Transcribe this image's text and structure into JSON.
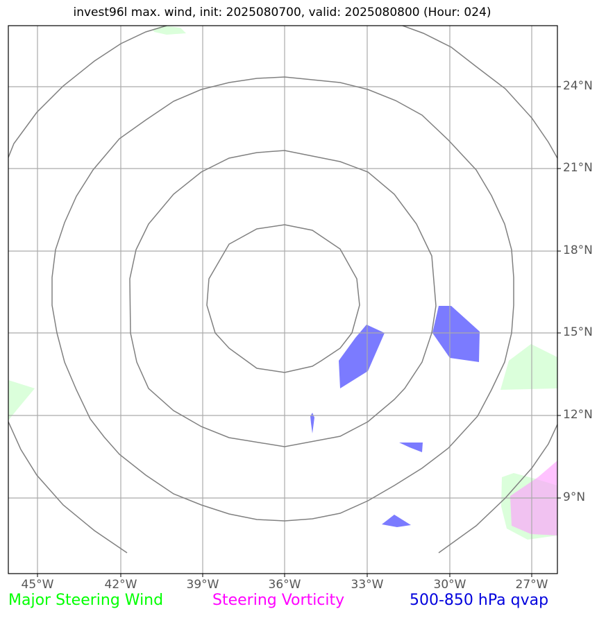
{
  "title": "invest96l max. wind, init: 2025080700, valid: 2025080800 (Hour: 024)",
  "map": {
    "lon_labels": [
      "45°W",
      "42°W",
      "39°W",
      "36°W",
      "33°W",
      "30°W",
      "27°W"
    ],
    "lat_labels": [
      "24°N",
      "21°N",
      "18°N",
      "15°N",
      "12°N",
      "9°N"
    ],
    "extent": {
      "lon_min": -46,
      "lon_max": -26,
      "lat_min": 6,
      "lat_max": 26
    },
    "grid": true,
    "colors": {
      "range_rings": "#808080",
      "gridlines": "#aaaaaa",
      "steering_wind": "#ccffcc",
      "steering_vorticity": "#ff99ff",
      "qvap": "#7b7bff"
    }
  },
  "legend": {
    "steering_wind": {
      "label": "Major Steering Wind",
      "color": "#00ff00"
    },
    "steering_vorticity": {
      "label": "Steering Vorticity",
      "color": "#ff00ff"
    },
    "qvap": {
      "label": "500-850 hPa qvap",
      "color": "#0000dd"
    }
  }
}
